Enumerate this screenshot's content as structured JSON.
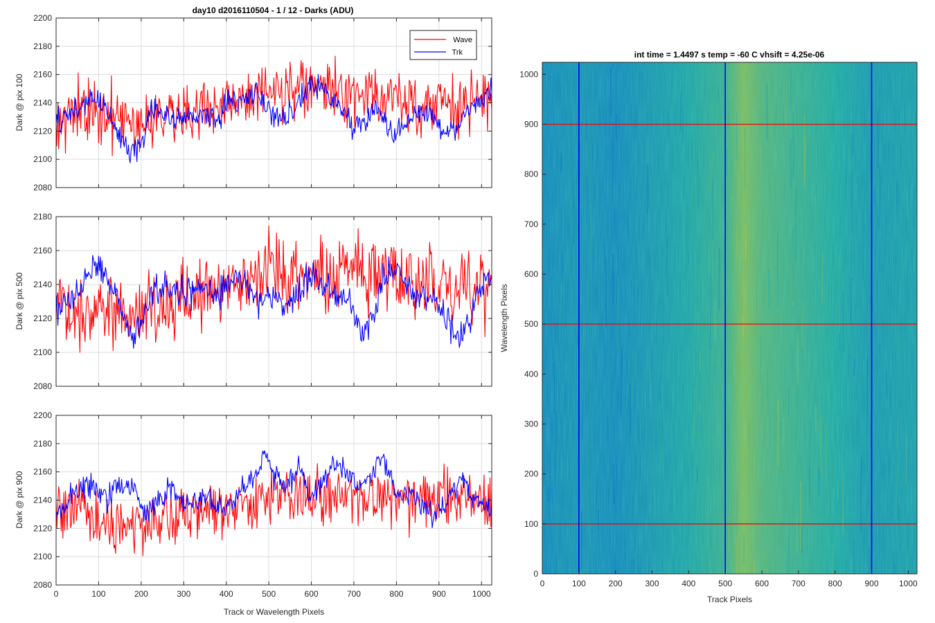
{
  "figure": {
    "title": "day10 d2016110504 - 1 / 12 - Darks (ADU)",
    "heatmap_title": "int time = 1.4497 s    temp = -60 C    vhsift = 4.25e-06"
  },
  "legend": {
    "wave": "Wave",
    "trk": "Trk"
  },
  "colors": {
    "wave": "#ff0000",
    "trk": "#0000ff",
    "grid": "#dcdcdc",
    "axis": "#262626"
  },
  "chart_data": [
    {
      "type": "line",
      "title": "day10 d2016110504 - 1 / 12 - Darks (ADU)",
      "xlabel": "",
      "ylabel": "Dark @ pix 100",
      "xlim": [
        0,
        1024
      ],
      "ylim": [
        2080,
        2200
      ],
      "xticks": [
        0,
        100,
        200,
        300,
        400,
        500,
        600,
        700,
        800,
        900,
        1000
      ],
      "yticks": [
        2080,
        2100,
        2120,
        2140,
        2160,
        2180,
        2200
      ],
      "grid": true,
      "legend_position": "top-right",
      "series": [
        {
          "name": "Wave",
          "color": "#ff0000",
          "x": [
            0,
            50,
            100,
            150,
            200,
            250,
            300,
            350,
            400,
            450,
            500,
            550,
            600,
            650,
            700,
            750,
            800,
            850,
            900,
            950,
            1000,
            1024
          ],
          "y": [
            2130,
            2132,
            2135,
            2125,
            2128,
            2135,
            2132,
            2135,
            2140,
            2140,
            2145,
            2148,
            2150,
            2148,
            2145,
            2145,
            2142,
            2138,
            2140,
            2138,
            2140,
            2138
          ],
          "noise": 12
        },
        {
          "name": "Trk",
          "color": "#0000ff",
          "x": [
            0,
            20,
            50,
            90,
            120,
            150,
            175,
            200,
            220,
            250,
            280,
            310,
            350,
            380,
            400,
            430,
            460,
            500,
            530,
            560,
            600,
            630,
            660,
            700,
            730,
            760,
            790,
            820,
            850,
            880,
            910,
            940,
            970,
            1000,
            1024
          ],
          "y": [
            2125,
            2130,
            2135,
            2145,
            2135,
            2115,
            2105,
            2110,
            2135,
            2135,
            2125,
            2130,
            2133,
            2125,
            2140,
            2140,
            2150,
            2135,
            2130,
            2135,
            2152,
            2150,
            2140,
            2123,
            2130,
            2135,
            2117,
            2125,
            2135,
            2130,
            2120,
            2123,
            2135,
            2140,
            2150
          ],
          "noise": 5
        }
      ]
    },
    {
      "type": "line",
      "xlabel": "",
      "ylabel": "Dark @ pix 500",
      "xlim": [
        0,
        1024
      ],
      "ylim": [
        2080,
        2180
      ],
      "xticks": [
        0,
        100,
        200,
        300,
        400,
        500,
        600,
        700,
        800,
        900,
        1000
      ],
      "yticks": [
        2080,
        2100,
        2120,
        2140,
        2160,
        2180
      ],
      "grid": true,
      "series": [
        {
          "name": "Wave",
          "color": "#ff0000",
          "x": [
            0,
            50,
            100,
            150,
            200,
            250,
            300,
            350,
            400,
            450,
            500,
            550,
            600,
            650,
            700,
            750,
            800,
            850,
            900,
            950,
            1000,
            1024
          ],
          "y": [
            2128,
            2125,
            2128,
            2125,
            2125,
            2130,
            2133,
            2135,
            2138,
            2143,
            2150,
            2148,
            2148,
            2145,
            2148,
            2148,
            2145,
            2140,
            2140,
            2140,
            2140,
            2140
          ],
          "noise": 12
        },
        {
          "name": "Trk",
          "color": "#0000ff",
          "x": [
            0,
            30,
            60,
            90,
            120,
            150,
            180,
            200,
            230,
            260,
            300,
            340,
            380,
            410,
            440,
            470,
            500,
            530,
            560,
            590,
            620,
            650,
            680,
            710,
            720,
            750,
            770,
            800,
            830,
            860,
            890,
            920,
            950,
            980,
            1010,
            1024
          ],
          "y": [
            2125,
            2130,
            2140,
            2150,
            2145,
            2130,
            2110,
            2118,
            2135,
            2138,
            2135,
            2140,
            2135,
            2140,
            2145,
            2130,
            2133,
            2128,
            2130,
            2143,
            2145,
            2135,
            2135,
            2115,
            2110,
            2125,
            2145,
            2150,
            2140,
            2135,
            2130,
            2120,
            2107,
            2125,
            2145,
            2145
          ],
          "noise": 5
        }
      ]
    },
    {
      "type": "line",
      "xlabel": "Track or Wavelength Pixels",
      "ylabel": "Dark @ pix 900",
      "xlim": [
        0,
        1024
      ],
      "ylim": [
        2080,
        2200
      ],
      "xticks": [
        0,
        100,
        200,
        300,
        400,
        500,
        600,
        700,
        800,
        900,
        1000
      ],
      "yticks": [
        2080,
        2100,
        2120,
        2140,
        2160,
        2180,
        2200
      ],
      "grid": true,
      "series": [
        {
          "name": "Wave",
          "color": "#ff0000",
          "x": [
            0,
            50,
            100,
            150,
            200,
            250,
            300,
            350,
            400,
            450,
            500,
            550,
            600,
            650,
            700,
            750,
            800,
            850,
            900,
            950,
            1000,
            1024
          ],
          "y": [
            2132,
            2130,
            2125,
            2120,
            2122,
            2125,
            2130,
            2132,
            2138,
            2140,
            2143,
            2145,
            2143,
            2140,
            2140,
            2140,
            2140,
            2140,
            2140,
            2140,
            2138,
            2138
          ],
          "noise": 11
        },
        {
          "name": "Trk",
          "color": "#0000ff",
          "x": [
            0,
            30,
            60,
            90,
            120,
            150,
            180,
            210,
            240,
            270,
            300,
            330,
            360,
            390,
            420,
            450,
            480,
            490,
            510,
            540,
            570,
            600,
            630,
            660,
            690,
            720,
            750,
            770,
            800,
            830,
            860,
            890,
            920,
            950,
            980,
            1010,
            1024
          ],
          "y": [
            2130,
            2140,
            2150,
            2150,
            2140,
            2152,
            2150,
            2130,
            2138,
            2150,
            2135,
            2140,
            2140,
            2133,
            2140,
            2150,
            2165,
            2175,
            2160,
            2150,
            2165,
            2143,
            2155,
            2165,
            2155,
            2150,
            2160,
            2170,
            2145,
            2145,
            2140,
            2128,
            2140,
            2155,
            2140,
            2135,
            2135
          ],
          "noise": 5
        }
      ]
    },
    {
      "type": "heatmap",
      "title": "int time = 1.4497 s    temp = -60 C    vhsift = 4.25e-06",
      "xlabel": "Track Pixels",
      "ylabel": "Wavelength Pixels",
      "xlim": [
        0,
        1024
      ],
      "ylim": [
        0,
        1024
      ],
      "xticks": [
        0,
        100,
        200,
        300,
        400,
        500,
        600,
        700,
        800,
        900,
        1000
      ],
      "yticks": [
        0,
        100,
        200,
        300,
        400,
        500,
        600,
        700,
        800,
        900,
        1000
      ],
      "colormap": "parula",
      "column_profile_x": [
        0,
        100,
        200,
        300,
        400,
        500,
        550,
        600,
        700,
        800,
        900,
        1024
      ],
      "column_profile_level": [
        0.35,
        0.4,
        0.35,
        0.42,
        0.48,
        0.55,
        0.68,
        0.6,
        0.55,
        0.5,
        0.42,
        0.45
      ],
      "vertical_lines": {
        "color": "#0000ff",
        "x": [
          100,
          500,
          900
        ]
      },
      "horizontal_lines": {
        "color": "#ff0000",
        "y": [
          100,
          500,
          900
        ]
      }
    }
  ]
}
